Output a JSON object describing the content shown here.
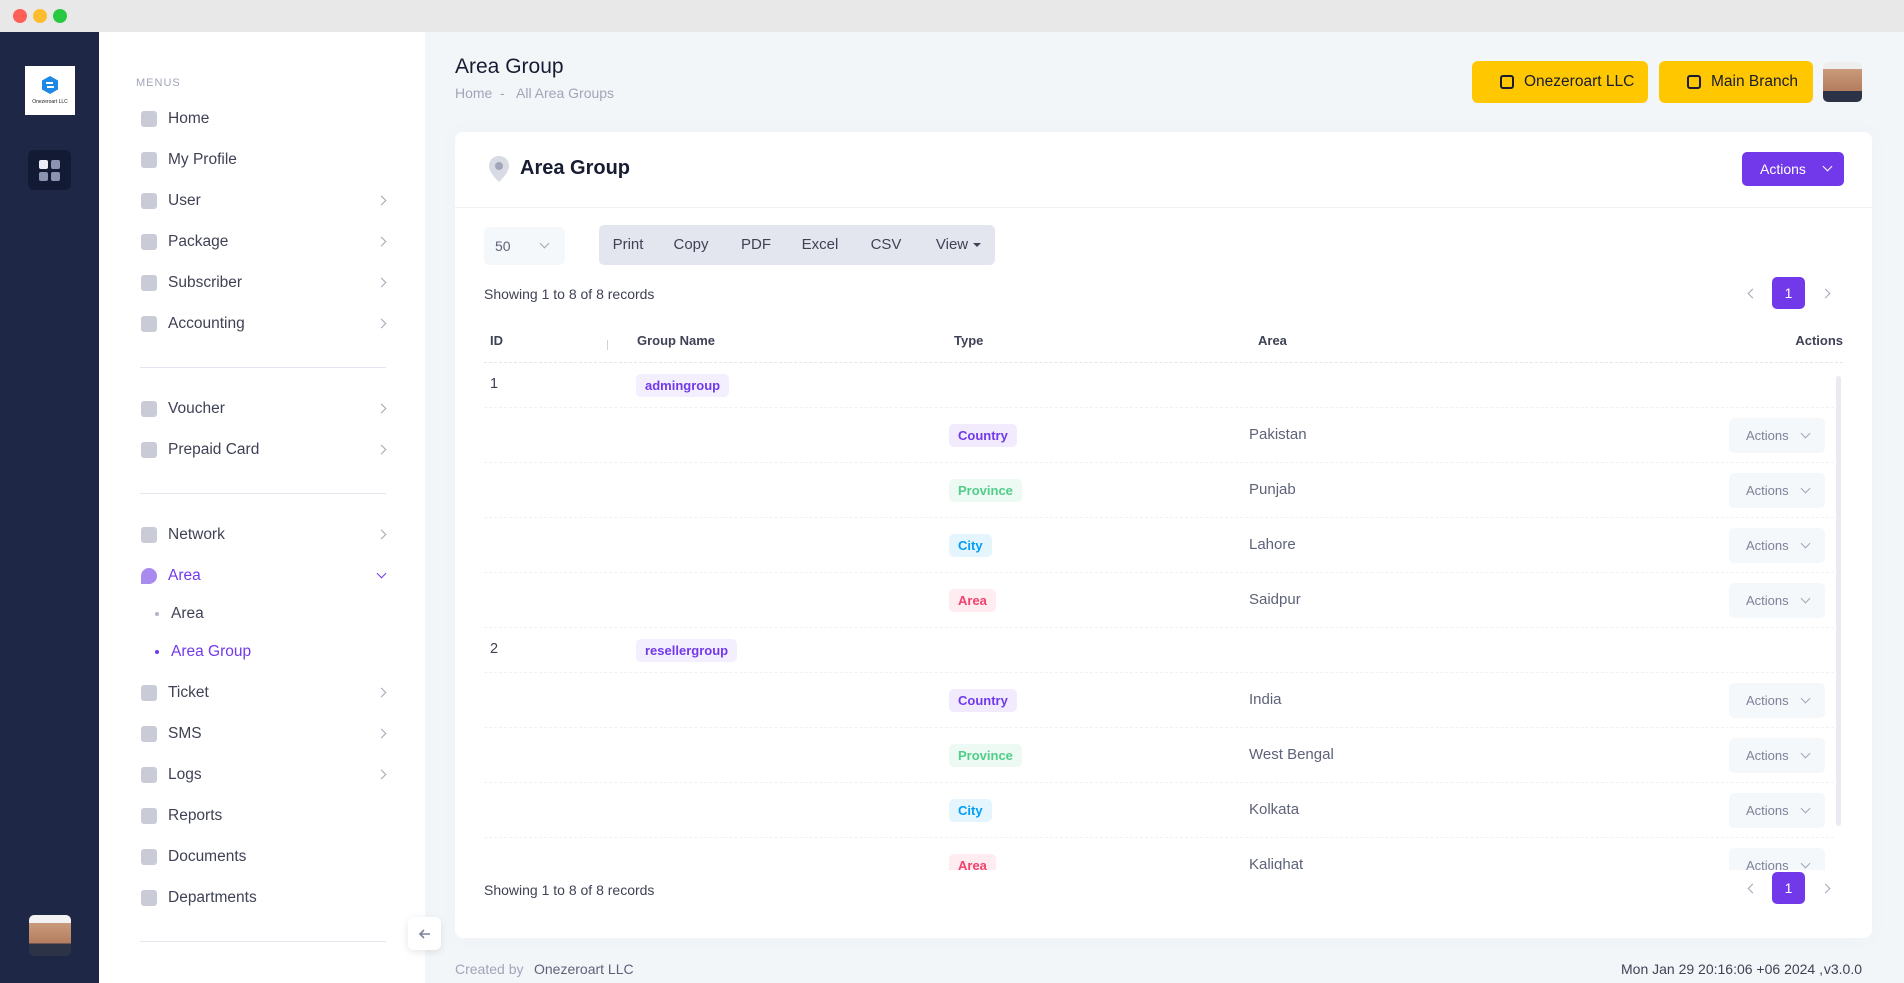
{
  "brand": {
    "logo_text": "Onezeroart LLC"
  },
  "sidebar": {
    "heading": "MENUS",
    "sections": [
      [
        {
          "label": "Home"
        },
        {
          "label": "My Profile"
        },
        {
          "label": "User",
          "expandable": true
        },
        {
          "label": "Package",
          "expandable": true
        },
        {
          "label": "Subscriber",
          "expandable": true
        },
        {
          "label": "Accounting",
          "expandable": true
        }
      ],
      [
        {
          "label": "Voucher",
          "expandable": true
        },
        {
          "label": "Prepaid Card",
          "expandable": true
        }
      ],
      [
        {
          "label": "Network",
          "expandable": true
        },
        {
          "label": "Area",
          "expandable": true,
          "open": true,
          "active": true,
          "children": [
            {
              "label": "Area"
            },
            {
              "label": "Area Group",
              "active": true
            }
          ]
        },
        {
          "label": "Ticket",
          "expandable": true
        },
        {
          "label": "SMS",
          "expandable": true
        },
        {
          "label": "Logs",
          "expandable": true
        },
        {
          "label": "Reports"
        },
        {
          "label": "Documents"
        },
        {
          "label": "Departments"
        }
      ]
    ]
  },
  "header": {
    "title": "Area Group",
    "breadcrumb": [
      "Home",
      "All Area Groups"
    ],
    "separator": "-",
    "company": "Onezeroart LLC",
    "branch": "Main Branch"
  },
  "card": {
    "title": "Area Group",
    "actions": "Actions",
    "page_size": "50",
    "buttons": [
      "Print",
      "Copy",
      "PDF",
      "Excel",
      "CSV",
      "View"
    ],
    "summary": "Showing 1 to 8 of 8 records",
    "page": "1"
  },
  "table": {
    "columns": [
      "ID",
      "Group Name",
      "Type",
      "Area",
      "Actions"
    ],
    "row_action": "Actions",
    "groups": [
      {
        "id": "1",
        "name": "admingroup",
        "rows": [
          {
            "type": "Country",
            "color": "#7239ea",
            "area": "Pakistan"
          },
          {
            "type": "Province",
            "color": "#50cd89",
            "area": "Punjab"
          },
          {
            "type": "City",
            "color": "#009ef7",
            "area": "Lahore"
          },
          {
            "type": "Area",
            "color": "#f1416c",
            "area": "Saidpur"
          }
        ]
      },
      {
        "id": "2",
        "name": "resellergroup",
        "rows": [
          {
            "type": "Country",
            "color": "#7239ea",
            "area": "India"
          },
          {
            "type": "Province",
            "color": "#50cd89",
            "area": "West Bengal"
          },
          {
            "type": "City",
            "color": "#009ef7",
            "area": "Kolkata"
          },
          {
            "type": "Area",
            "color": "#f1416c",
            "area": "Kalighat"
          }
        ]
      }
    ]
  },
  "footer": {
    "created_by": "Created by",
    "company": "Onezeroart LLC",
    "timestamp": "Mon Jan 29 20:16:06 +06 2024 ,",
    "version": "v3.0.0"
  }
}
